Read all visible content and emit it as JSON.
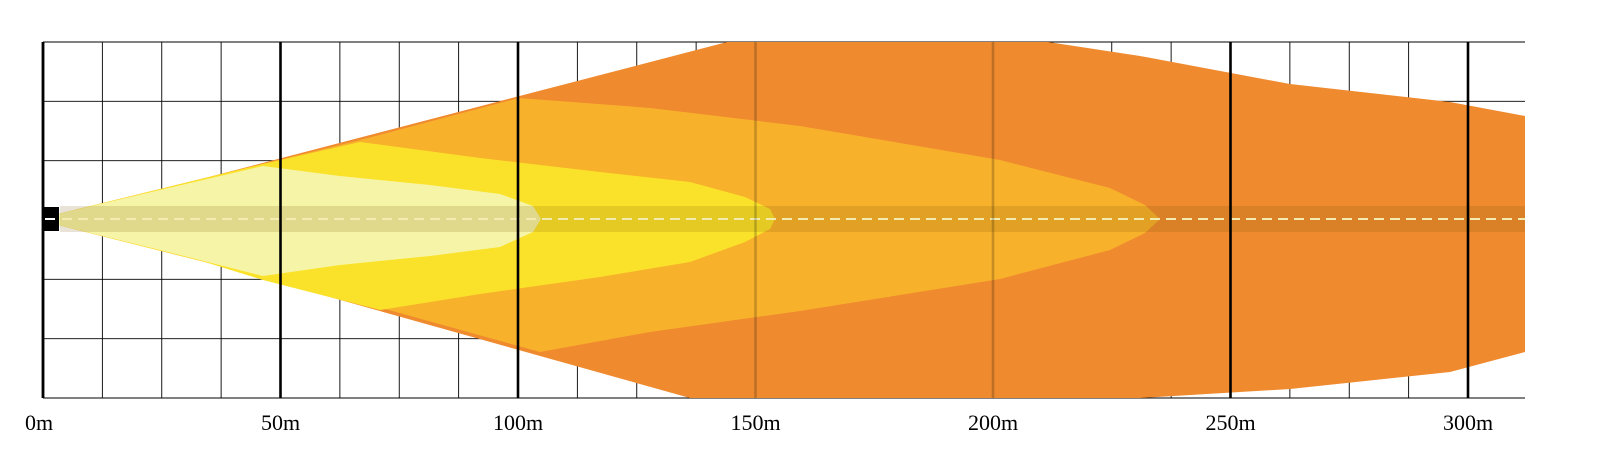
{
  "chart_data": {
    "type": "area",
    "title": "",
    "xlabel": "",
    "ylabel": "",
    "x_unit": "m",
    "xlim": [
      0,
      312
    ],
    "x_ticks": [
      {
        "value": 0,
        "label": "0m"
      },
      {
        "value": 50,
        "label": "50m"
      },
      {
        "value": 100,
        "label": "100m"
      },
      {
        "value": 150,
        "label": "150m"
      },
      {
        "value": 200,
        "label": "200m"
      },
      {
        "value": 250,
        "label": "250m"
      },
      {
        "value": 300,
        "label": "300m"
      }
    ],
    "grid": true,
    "minor_grid_step_m": 12.5,
    "legend": "none",
    "zones": [
      {
        "color": "#ef8a2f",
        "reach_m": 312
      },
      {
        "color": "#f8b12b",
        "reach_m": 236
      },
      {
        "color": "#fbe22a",
        "reach_m": 154
      },
      {
        "color": "#f6f4a6",
        "reach_m": 105
      }
    ],
    "centerline_color": "#f4ebb0"
  }
}
